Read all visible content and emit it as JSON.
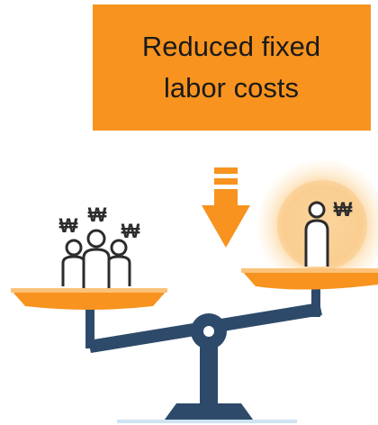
{
  "title": {
    "lines": [
      "Reduced fixed",
      "labor costs"
    ]
  },
  "illustration": {
    "currency_symbol": "₩"
  }
}
